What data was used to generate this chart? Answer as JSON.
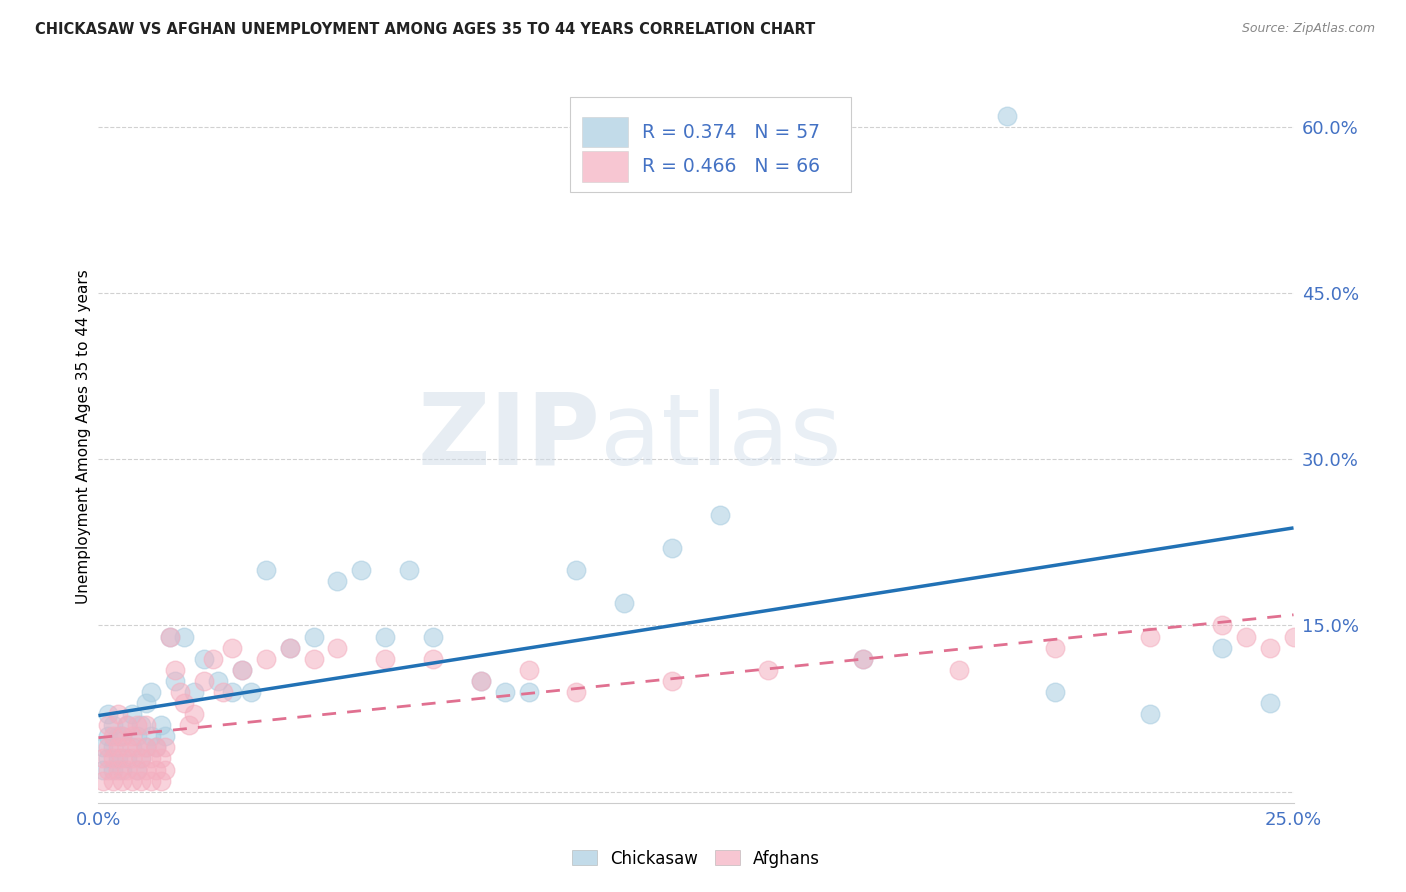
{
  "title": "CHICKASAW VS AFGHAN UNEMPLOYMENT AMONG AGES 35 TO 44 YEARS CORRELATION CHART",
  "source": "Source: ZipAtlas.com",
  "ylabel": "Unemployment Among Ages 35 to 44 years",
  "xlim": [
    0.0,
    0.25
  ],
  "ylim": [
    -0.01,
    0.65
  ],
  "xtick_positions": [
    0.0,
    0.05,
    0.1,
    0.15,
    0.2,
    0.25
  ],
  "xticklabels": [
    "0.0%",
    "",
    "",
    "",
    "",
    "25.0%"
  ],
  "ytick_positions": [
    0.0,
    0.15,
    0.3,
    0.45,
    0.6
  ],
  "ytick_labels": [
    "",
    "15.0%",
    "30.0%",
    "45.0%",
    "60.0%"
  ],
  "chickasaw_R": 0.374,
  "chickasaw_N": 57,
  "afghan_R": 0.466,
  "afghan_N": 66,
  "chickasaw_color": "#a8cce0",
  "afghan_color": "#f4afc0",
  "chickasaw_line_color": "#2171b5",
  "afghan_line_color": "#e07090",
  "watermark_zip": "ZIP",
  "watermark_atlas": "atlas",
  "background_color": "#ffffff",
  "grid_color": "#cccccc",
  "title_color": "#222222",
  "source_color": "#888888",
  "tick_color": "#4472c4",
  "chickasaw_x": [
    0.001,
    0.001,
    0.002,
    0.002,
    0.002,
    0.003,
    0.003,
    0.003,
    0.004,
    0.004,
    0.005,
    0.005,
    0.006,
    0.006,
    0.007,
    0.007,
    0.008,
    0.008,
    0.009,
    0.009,
    0.01,
    0.01,
    0.011,
    0.011,
    0.012,
    0.013,
    0.014,
    0.015,
    0.016,
    0.018,
    0.02,
    0.022,
    0.025,
    0.028,
    0.03,
    0.032,
    0.035,
    0.04,
    0.045,
    0.05,
    0.055,
    0.06,
    0.065,
    0.07,
    0.08,
    0.085,
    0.09,
    0.1,
    0.11,
    0.12,
    0.13,
    0.16,
    0.19,
    0.2,
    0.22,
    0.235,
    0.245
  ],
  "chickasaw_y": [
    0.02,
    0.04,
    0.03,
    0.05,
    0.07,
    0.02,
    0.04,
    0.06,
    0.03,
    0.05,
    0.02,
    0.05,
    0.03,
    0.06,
    0.04,
    0.07,
    0.02,
    0.05,
    0.03,
    0.06,
    0.04,
    0.08,
    0.05,
    0.09,
    0.04,
    0.06,
    0.05,
    0.14,
    0.1,
    0.14,
    0.09,
    0.12,
    0.1,
    0.09,
    0.11,
    0.09,
    0.2,
    0.13,
    0.14,
    0.19,
    0.2,
    0.14,
    0.2,
    0.14,
    0.1,
    0.09,
    0.09,
    0.2,
    0.17,
    0.22,
    0.25,
    0.12,
    0.61,
    0.09,
    0.07,
    0.13,
    0.08
  ],
  "afghan_x": [
    0.001,
    0.001,
    0.002,
    0.002,
    0.002,
    0.003,
    0.003,
    0.003,
    0.004,
    0.004,
    0.004,
    0.005,
    0.005,
    0.005,
    0.006,
    0.006,
    0.006,
    0.007,
    0.007,
    0.007,
    0.008,
    0.008,
    0.008,
    0.009,
    0.009,
    0.01,
    0.01,
    0.01,
    0.011,
    0.011,
    0.012,
    0.012,
    0.013,
    0.013,
    0.014,
    0.014,
    0.015,
    0.016,
    0.017,
    0.018,
    0.019,
    0.02,
    0.022,
    0.024,
    0.026,
    0.028,
    0.03,
    0.035,
    0.04,
    0.045,
    0.05,
    0.06,
    0.07,
    0.08,
    0.09,
    0.1,
    0.12,
    0.14,
    0.16,
    0.18,
    0.2,
    0.22,
    0.235,
    0.24,
    0.245,
    0.25
  ],
  "afghan_y": [
    0.01,
    0.03,
    0.02,
    0.04,
    0.06,
    0.01,
    0.03,
    0.05,
    0.02,
    0.04,
    0.07,
    0.01,
    0.03,
    0.05,
    0.02,
    0.04,
    0.06,
    0.01,
    0.03,
    0.05,
    0.02,
    0.04,
    0.06,
    0.01,
    0.03,
    0.02,
    0.04,
    0.06,
    0.01,
    0.03,
    0.02,
    0.04,
    0.01,
    0.03,
    0.02,
    0.04,
    0.14,
    0.11,
    0.09,
    0.08,
    0.06,
    0.07,
    0.1,
    0.12,
    0.09,
    0.13,
    0.11,
    0.12,
    0.13,
    0.12,
    0.13,
    0.12,
    0.12,
    0.1,
    0.11,
    0.09,
    0.1,
    0.11,
    0.12,
    0.11,
    0.13,
    0.14,
    0.15,
    0.14,
    0.13,
    0.14
  ]
}
